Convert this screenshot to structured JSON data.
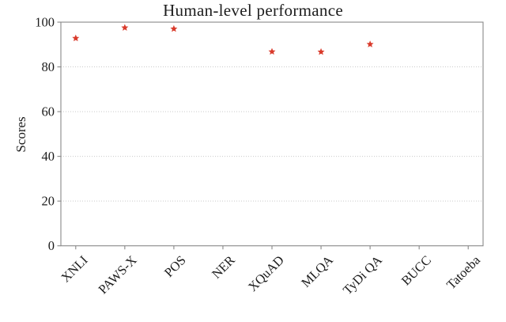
{
  "chart_data": {
    "type": "scatter",
    "title": "Human-level performance",
    "xlabel": "",
    "ylabel": "Scores",
    "categories": [
      "XNLI",
      "PAWS-X",
      "POS",
      "NER",
      "XQuAD",
      "MLQA",
      "TyDi QA",
      "BUCC",
      "Tatoeba"
    ],
    "series": [
      {
        "name": "Human-level performance",
        "marker": "star",
        "color": "#d93b2c",
        "values": [
          92.8,
          97.5,
          97.0,
          null,
          86.8,
          86.7,
          90.1,
          null,
          null
        ]
      }
    ],
    "ylim": [
      0,
      100
    ],
    "yticks": [
      0,
      20,
      40,
      60,
      80,
      100
    ],
    "grid": true,
    "grid_style": "dotted",
    "legend": false,
    "x_tick_rotation": 45,
    "axis_color": "#888888",
    "grid_color": "#c9c9c9",
    "text_color": "#1c1c1c",
    "frame": "box"
  }
}
